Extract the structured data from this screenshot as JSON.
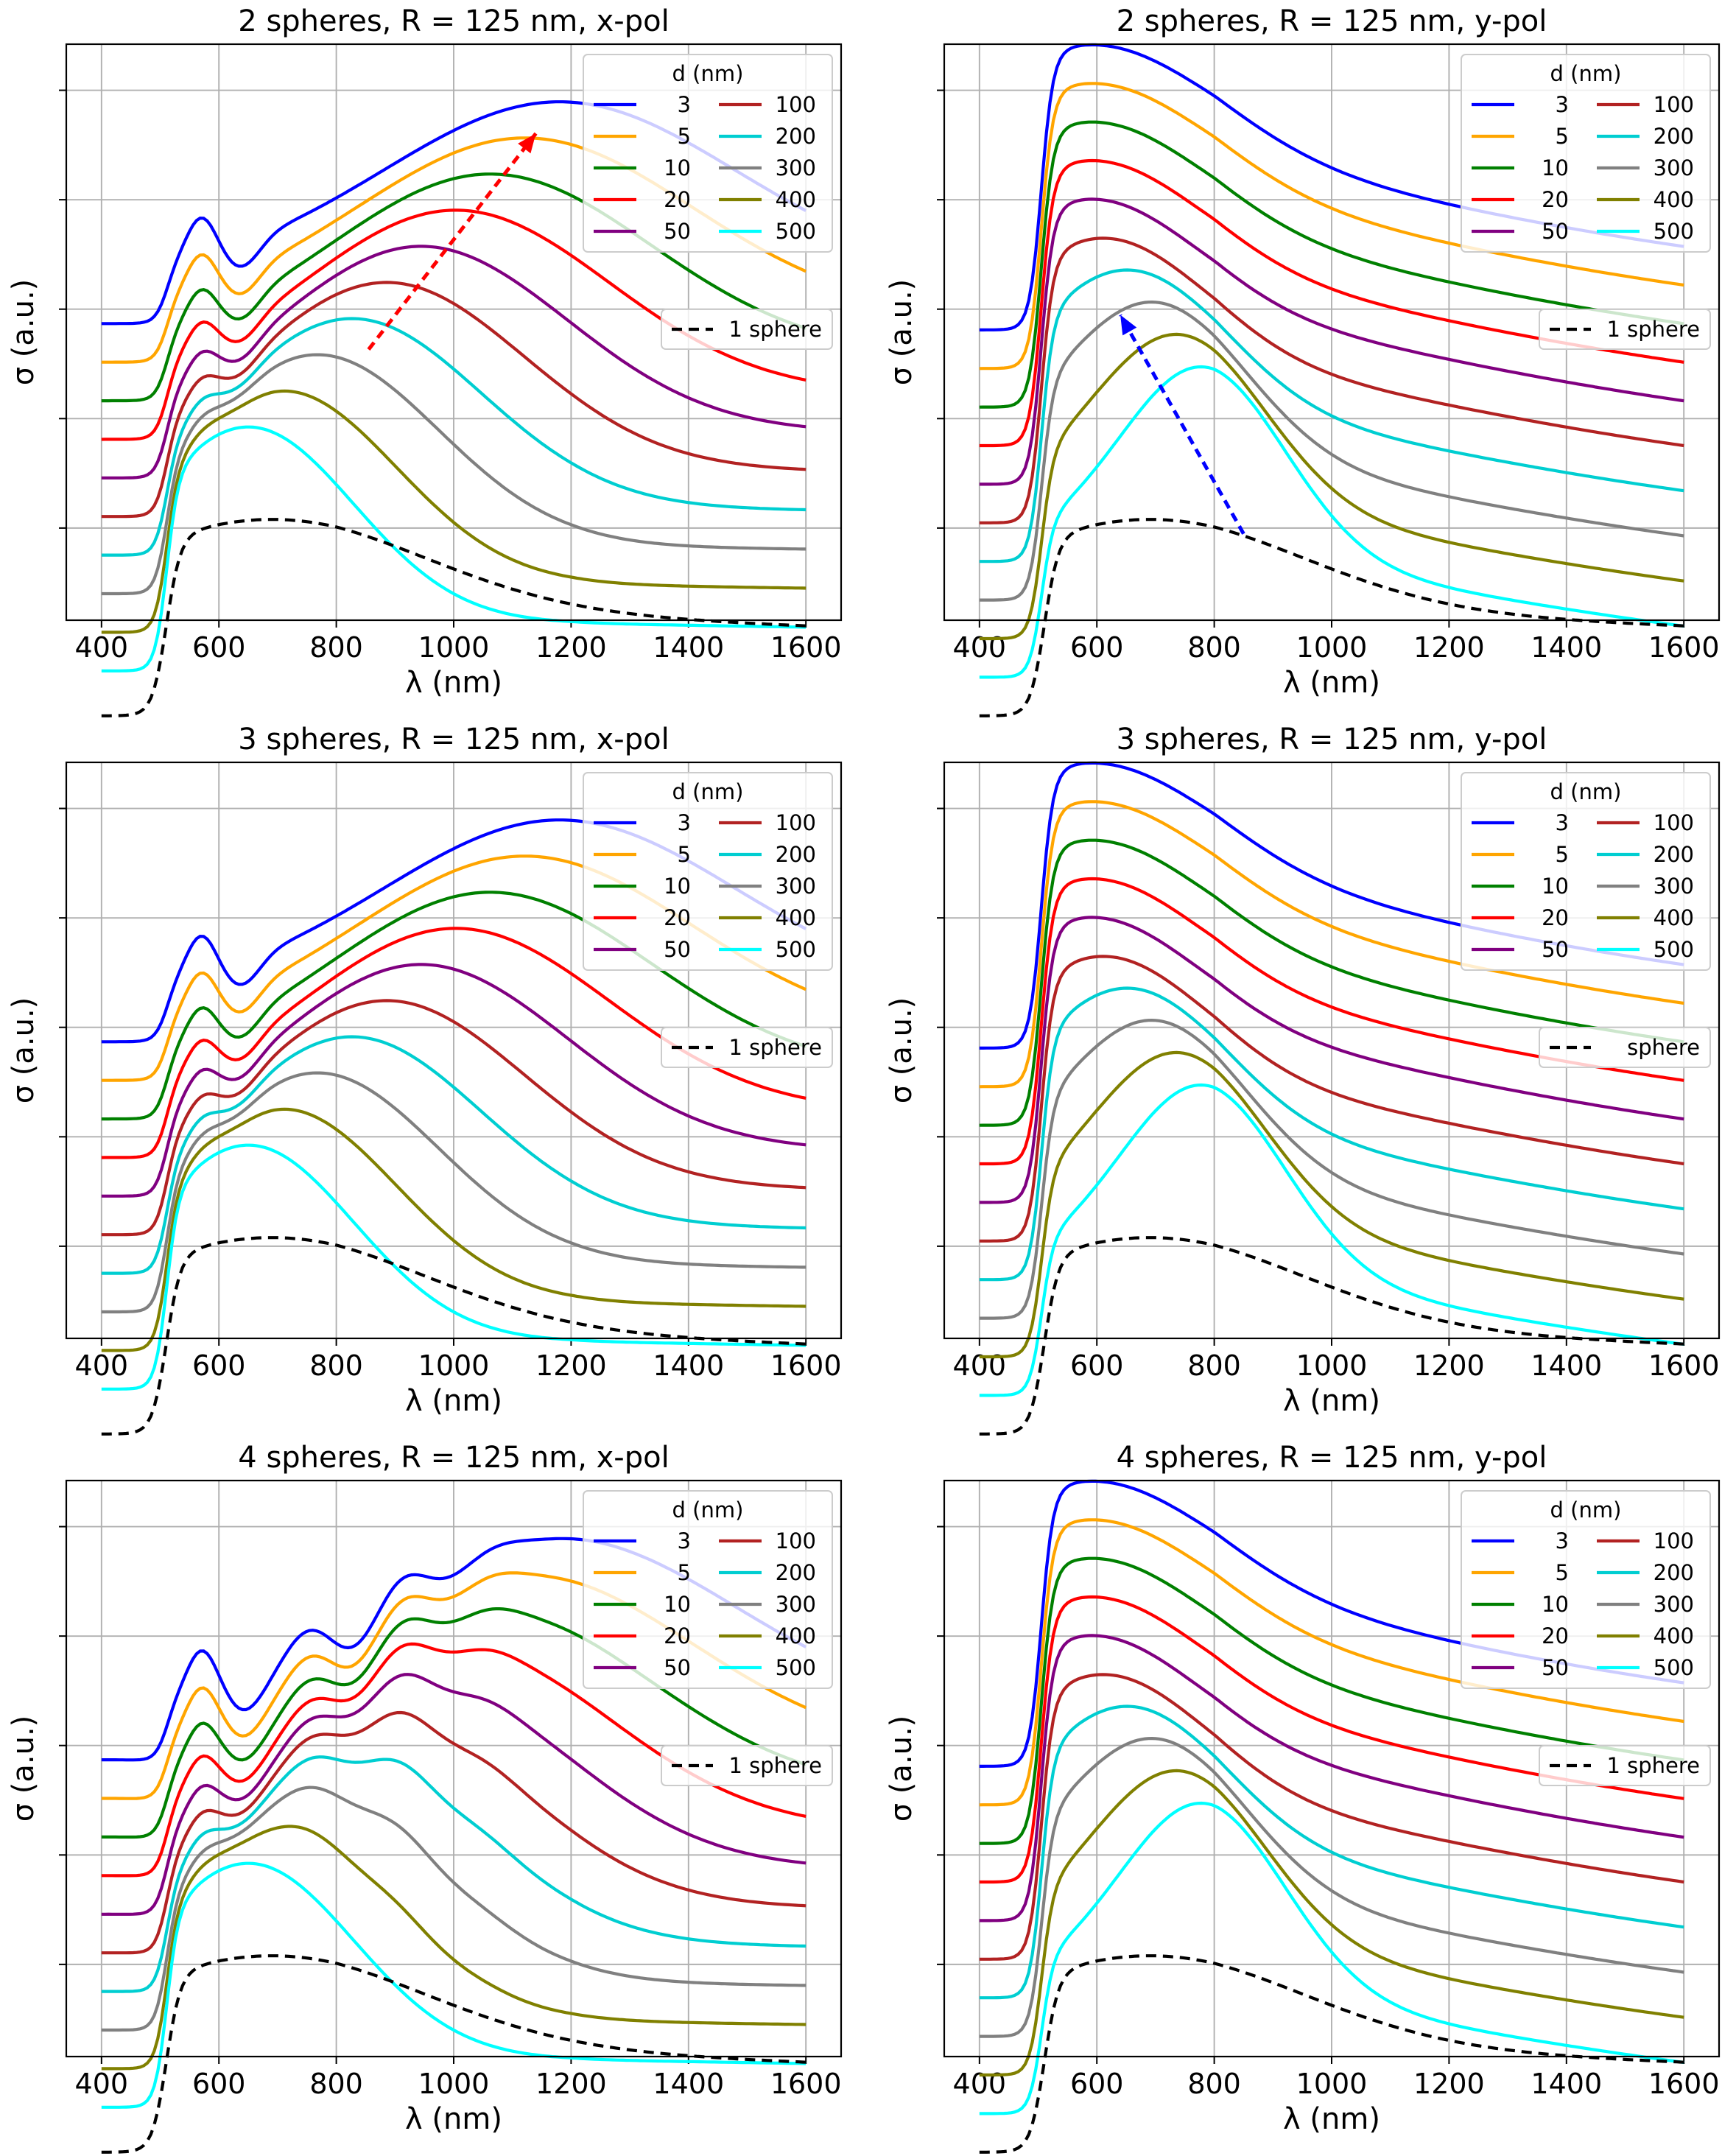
{
  "chart_data": [
    {
      "type": "line",
      "title": "2 spheres, R = 125 nm, x-pol",
      "xlabel": "λ (nm)",
      "ylabel": "σ (a.u.)",
      "x_ticks": [
        "400",
        "600",
        "800",
        "1000",
        "1200",
        "1400",
        "1600"
      ],
      "xlim": [
        340,
        1660
      ],
      "mode": "x2",
      "legend": {
        "title": "d (nm)",
        "location": "top-right",
        "reference": "1 sphere"
      },
      "arrow": {
        "color": "#ff0000",
        "from": [
          855,
          0.47
        ],
        "to": [
          1140,
          0.845
        ]
      },
      "series": [
        {
          "name": "3",
          "color": "#0000ff"
        },
        {
          "name": "5",
          "color": "#ffa500"
        },
        {
          "name": "10",
          "color": "#008000"
        },
        {
          "name": "20",
          "color": "#ff0000"
        },
        {
          "name": "50",
          "color": "#800080"
        },
        {
          "name": "100",
          "color": "#b22222"
        },
        {
          "name": "200",
          "color": "#00ced1"
        },
        {
          "name": "300",
          "color": "#808080"
        },
        {
          "name": "400",
          "color": "#808000"
        },
        {
          "name": "500",
          "color": "#00ffff"
        }
      ]
    },
    {
      "type": "line",
      "title": "2 spheres, R = 125 nm, y-pol",
      "xlabel": "λ (nm)",
      "ylabel": "σ (a.u.)",
      "x_ticks": [
        "400",
        "600",
        "800",
        "1000",
        "1200",
        "1400",
        "1600"
      ],
      "xlim": [
        340,
        1660
      ],
      "mode": "y",
      "legend": {
        "title": "d (nm)",
        "location": "top-right",
        "reference": "1 sphere"
      },
      "arrow": {
        "color": "#0000ff",
        "from": [
          850,
          0.15
        ],
        "to": [
          640,
          0.53
        ]
      },
      "series": [
        {
          "name": "3",
          "color": "#0000ff"
        },
        {
          "name": "5",
          "color": "#ffa500"
        },
        {
          "name": "10",
          "color": "#008000"
        },
        {
          "name": "20",
          "color": "#ff0000"
        },
        {
          "name": "50",
          "color": "#800080"
        },
        {
          "name": "100",
          "color": "#b22222"
        },
        {
          "name": "200",
          "color": "#00ced1"
        },
        {
          "name": "300",
          "color": "#808080"
        },
        {
          "name": "400",
          "color": "#808000"
        },
        {
          "name": "500",
          "color": "#00ffff"
        }
      ]
    },
    {
      "type": "line",
      "title": "3 spheres, R = 125 nm, x-pol",
      "xlabel": "λ (nm)",
      "ylabel": "σ (a.u.)",
      "x_ticks": [
        "400",
        "600",
        "800",
        "1000",
        "1200",
        "1400",
        "1600"
      ],
      "xlim": [
        340,
        1660
      ],
      "mode": "x3",
      "legend": {
        "title": "d (nm)",
        "location": "top-right",
        "reference": "1 sphere"
      },
      "series": [
        {
          "name": "3",
          "color": "#0000ff"
        },
        {
          "name": "5",
          "color": "#ffa500"
        },
        {
          "name": "10",
          "color": "#008000"
        },
        {
          "name": "20",
          "color": "#ff0000"
        },
        {
          "name": "50",
          "color": "#800080"
        },
        {
          "name": "100",
          "color": "#b22222"
        },
        {
          "name": "200",
          "color": "#00ced1"
        },
        {
          "name": "300",
          "color": "#808080"
        },
        {
          "name": "400",
          "color": "#808000"
        },
        {
          "name": "500",
          "color": "#00ffff"
        }
      ]
    },
    {
      "type": "line",
      "title": "3 spheres, R = 125 nm, y-pol",
      "xlabel": "λ (nm)",
      "ylabel": "σ (a.u.)",
      "x_ticks": [
        "400",
        "600",
        "800",
        "1000",
        "1200",
        "1400",
        "1600"
      ],
      "xlim": [
        340,
        1660
      ],
      "mode": "y3",
      "legend": {
        "title": "d (nm)",
        "location": "top-right",
        "reference": "sphere"
      },
      "series": [
        {
          "name": "3",
          "color": "#0000ff"
        },
        {
          "name": "5",
          "color": "#ffa500"
        },
        {
          "name": "10",
          "color": "#008000"
        },
        {
          "name": "20",
          "color": "#ff0000"
        },
        {
          "name": "50",
          "color": "#800080"
        },
        {
          "name": "100",
          "color": "#b22222"
        },
        {
          "name": "200",
          "color": "#00ced1"
        },
        {
          "name": "300",
          "color": "#808080"
        },
        {
          "name": "400",
          "color": "#808000"
        },
        {
          "name": "500",
          "color": "#00ffff"
        }
      ]
    },
    {
      "type": "line",
      "title": "4 spheres, R = 125 nm, x-pol",
      "xlabel": "λ (nm)",
      "ylabel": "σ (a.u.)",
      "x_ticks": [
        "400",
        "600",
        "800",
        "1000",
        "1200",
        "1400",
        "1600"
      ],
      "xlim": [
        340,
        1660
      ],
      "mode": "x4",
      "legend": {
        "title": "d (nm)",
        "location": "top-right",
        "reference": "1 sphere"
      },
      "series": [
        {
          "name": "3",
          "color": "#0000ff"
        },
        {
          "name": "5",
          "color": "#ffa500"
        },
        {
          "name": "10",
          "color": "#008000"
        },
        {
          "name": "20",
          "color": "#ff0000"
        },
        {
          "name": "50",
          "color": "#800080"
        },
        {
          "name": "100",
          "color": "#b22222"
        },
        {
          "name": "200",
          "color": "#00ced1"
        },
        {
          "name": "300",
          "color": "#808080"
        },
        {
          "name": "400",
          "color": "#808000"
        },
        {
          "name": "500",
          "color": "#00ffff"
        }
      ]
    },
    {
      "type": "line",
      "title": "4 spheres, R = 125 nm, y-pol",
      "xlabel": "λ (nm)",
      "ylabel": "σ (a.u.)",
      "x_ticks": [
        "400",
        "600",
        "800",
        "1000",
        "1200",
        "1400",
        "1600"
      ],
      "xlim": [
        340,
        1660
      ],
      "mode": "y4",
      "legend": {
        "title": "d (nm)",
        "location": "top-right",
        "reference": "1 sphere"
      },
      "series": [
        {
          "name": "3",
          "color": "#0000ff"
        },
        {
          "name": "5",
          "color": "#ffa500"
        },
        {
          "name": "10",
          "color": "#008000"
        },
        {
          "name": "20",
          "color": "#ff0000"
        },
        {
          "name": "50",
          "color": "#800080"
        },
        {
          "name": "100",
          "color": "#b22222"
        },
        {
          "name": "200",
          "color": "#00ced1"
        },
        {
          "name": "300",
          "color": "#808080"
        },
        {
          "name": "400",
          "color": "#808000"
        },
        {
          "name": "500",
          "color": "#00ffff"
        }
      ]
    }
  ]
}
